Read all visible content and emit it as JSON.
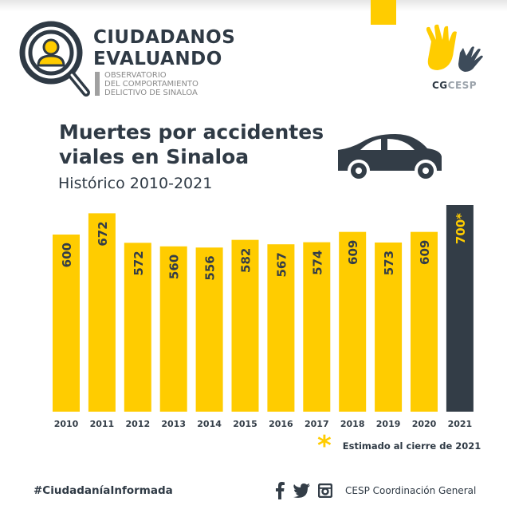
{
  "header": {
    "logo_line1": "CIUDADANOS",
    "logo_line2": "EVALUANDO",
    "logo_sub1": "OBSERVATORIO",
    "logo_sub2": "DEL COMPORTAMIENTO",
    "logo_sub3": "DELICTIVO DE SINALOA",
    "partner_a": "CG",
    "partner_b": "CESP"
  },
  "colors": {
    "accent": "#FFCC00",
    "dark": "#333d47"
  },
  "chart_data": {
    "type": "bar",
    "title": "Muertes por accidentes viales en Sinaloa",
    "title_line1": "Muertes por accidentes",
    "title_line2": "viales en Sinaloa",
    "subtitle": "Histórico 2010-2021",
    "categories": [
      "2010",
      "2011",
      "2012",
      "2013",
      "2014",
      "2015",
      "2016",
      "2017",
      "2018",
      "2019",
      "2020",
      "2021"
    ],
    "values": [
      600,
      672,
      572,
      560,
      556,
      582,
      567,
      574,
      609,
      573,
      609,
      700
    ],
    "labels": [
      "600",
      "672",
      "572",
      "560",
      "556",
      "582",
      "567",
      "574",
      "609",
      "573",
      "609",
      "700*"
    ],
    "estimated": [
      false,
      false,
      false,
      false,
      false,
      false,
      false,
      false,
      false,
      false,
      false,
      true
    ],
    "xlabel": "",
    "ylabel": "",
    "ylim": [
      0,
      700
    ],
    "grid": false,
    "legend": {
      "symbol": "*",
      "text": "Estimado al cierre de 2021",
      "placement": "bottom-right"
    }
  },
  "footer": {
    "hashtag": "#CiudadaníaInformada",
    "org": "CESP Coordinación General",
    "social": [
      "facebook-icon",
      "twitter-icon",
      "instagram-icon"
    ]
  }
}
